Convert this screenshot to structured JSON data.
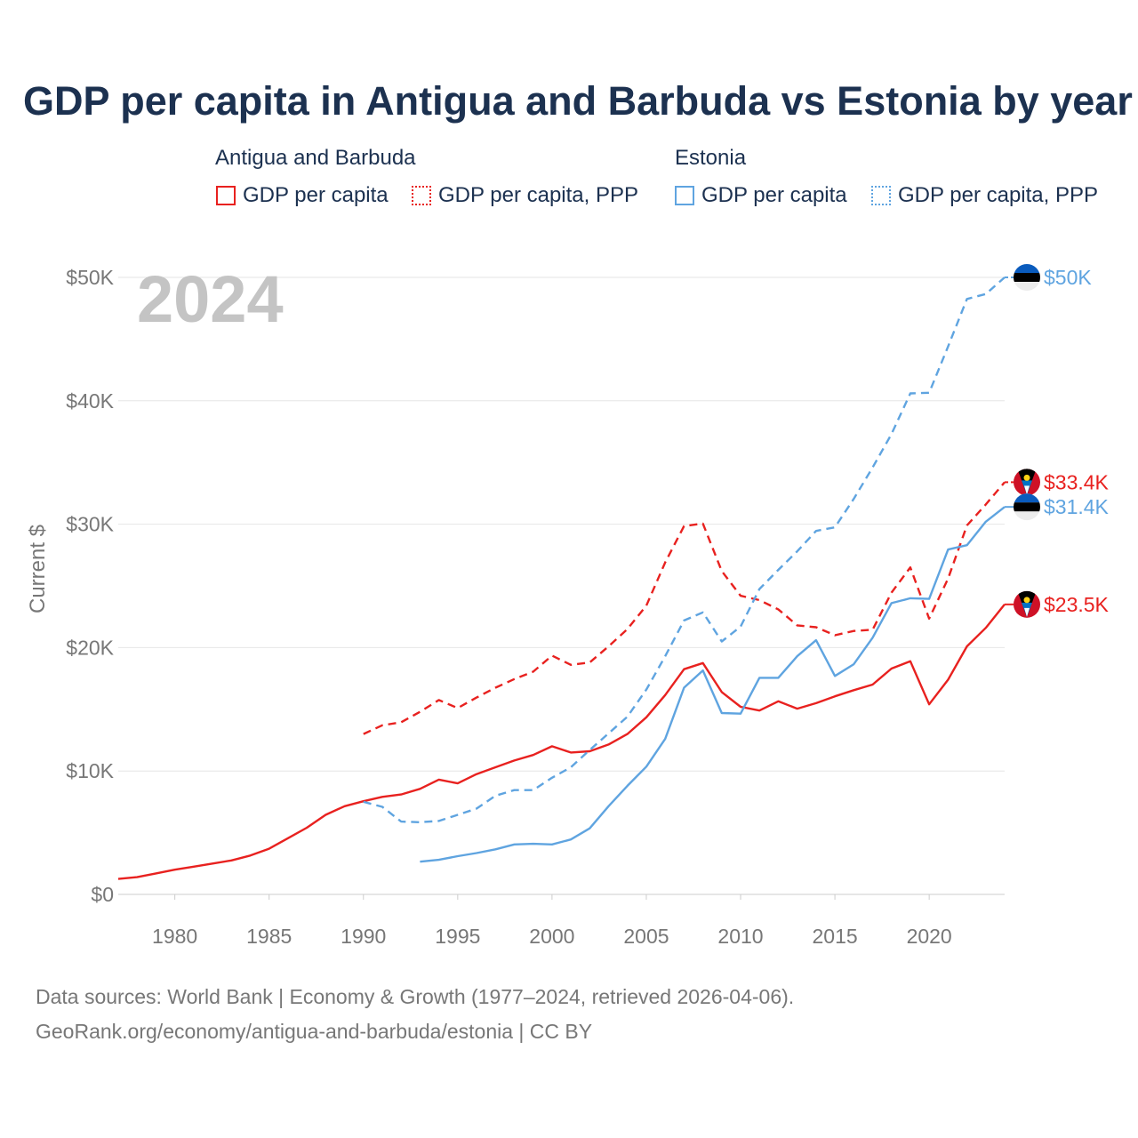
{
  "title": "GDP per capita in Antigua and Barbuda vs Estonia by year",
  "legend": {
    "groups": [
      {
        "name": "Antigua and Barbuda",
        "items": [
          {
            "label": "GDP per capita",
            "style": "solid"
          },
          {
            "label": "GDP per capita, PPP",
            "style": "dotted"
          }
        ],
        "color": "#e8211f"
      },
      {
        "name": "Estonia",
        "items": [
          {
            "label": "GDP per capita",
            "style": "solid"
          },
          {
            "label": "GDP per capita, PPP",
            "style": "dotted"
          }
        ],
        "color": "#5fa4e0"
      }
    ]
  },
  "footer": {
    "line1": "Data sources: World Bank | Economy & Growth (1977–2024, retrieved 2026-04-06).",
    "line2": "GeoRank.org/economy/antigua-and-barbuda/estonia | CC BY"
  },
  "chart_data": {
    "type": "line",
    "year_label": "2024",
    "ylabel": "Current $",
    "xlim": [
      1977,
      2024
    ],
    "ylim": [
      0,
      50000
    ],
    "x_ticks": [
      1980,
      1985,
      1990,
      1995,
      2000,
      2005,
      2010,
      2015,
      2020
    ],
    "y_ticks": [
      {
        "value": 0,
        "label": "$0"
      },
      {
        "value": 10000,
        "label": "$10K"
      },
      {
        "value": 20000,
        "label": "$20K"
      },
      {
        "value": 30000,
        "label": "$30K"
      },
      {
        "value": 40000,
        "label": "$40K"
      },
      {
        "value": 50000,
        "label": "$50K"
      }
    ],
    "grid": true,
    "series": [
      {
        "name": "Antigua and Barbuda GDP per capita",
        "country": "antigua",
        "color": "#e8211f",
        "dash": false,
        "end_label": "$23.5K",
        "start_year": 1977,
        "values": [
          1250,
          1400,
          1700,
          2000,
          2250,
          2500,
          2750,
          3150,
          3700,
          4550,
          5400,
          6450,
          7150,
          7550,
          7900,
          8100,
          8550,
          9300,
          9000,
          9750,
          10300,
          10850,
          11300,
          12000,
          11500,
          11600,
          12150,
          13000,
          14350,
          16150,
          18250,
          18750,
          16400,
          15200,
          14900,
          15650,
          15050,
          15500,
          16050,
          16550,
          17000,
          18300,
          18900,
          15400,
          17400,
          20100,
          21600,
          23500
        ]
      },
      {
        "name": "Antigua and Barbuda GDP per capita, PPP",
        "country": "antigua",
        "color": "#e8211f",
        "dash": true,
        "end_label": "$33.4K",
        "start_year": 1990,
        "values": [
          13000,
          13700,
          13950,
          14800,
          15750,
          15100,
          15950,
          16750,
          17450,
          18050,
          19350,
          18600,
          18800,
          20100,
          21500,
          23400,
          26900,
          29850,
          30050,
          26200,
          24200,
          23850,
          23100,
          21800,
          21650,
          21000,
          21350,
          21450,
          24450,
          26500,
          22350,
          25600,
          29900,
          31600,
          33400
        ]
      },
      {
        "name": "Estonia GDP per capita",
        "country": "estonia",
        "color": "#5fa4e0",
        "dash": false,
        "end_label": "$31.4K",
        "start_year": 1993,
        "values": [
          2650,
          2800,
          3100,
          3350,
          3650,
          4050,
          4100,
          4050,
          4450,
          5350,
          7150,
          8800,
          10350,
          12600,
          16750,
          18150,
          14700,
          14650,
          17550,
          17550,
          19300,
          20600,
          17700,
          18650,
          20800,
          23600,
          24000,
          23950,
          27950,
          28300,
          30200,
          31400
        ]
      },
      {
        "name": "Estonia GDP per capita, PPP",
        "country": "estonia",
        "color": "#5fa4e0",
        "dash": true,
        "end_label": "$50K",
        "start_year": 1990,
        "values": [
          7500,
          7100,
          5900,
          5850,
          5950,
          6450,
          6950,
          8000,
          8450,
          8450,
          9450,
          10300,
          11700,
          13050,
          14400,
          16600,
          19300,
          22200,
          22850,
          20500,
          21700,
          24750,
          26300,
          27800,
          29450,
          29750,
          32050,
          34600,
          37300,
          40600,
          40650,
          44400,
          48250,
          48650,
          50000
        ]
      }
    ]
  }
}
